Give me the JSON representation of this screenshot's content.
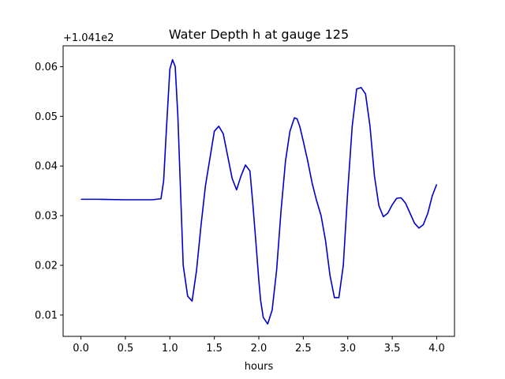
{
  "chart_data": {
    "type": "line",
    "title": "Water Depth h at gauge 125",
    "xlabel": "hours",
    "ylabel": "",
    "y_offset_label": "+1.041e2",
    "xlim": [
      -0.2,
      4.2
    ],
    "ylim": [
      0.0057,
      0.0642
    ],
    "x_ticks": [
      0.0,
      0.5,
      1.0,
      1.5,
      2.0,
      2.5,
      3.0,
      3.5,
      4.0
    ],
    "x_tick_labels": [
      "0.0",
      "0.5",
      "1.0",
      "1.5",
      "2.0",
      "2.5",
      "3.0",
      "3.5",
      "4.0"
    ],
    "y_ticks": [
      0.01,
      0.02,
      0.03,
      0.04,
      0.05,
      0.06
    ],
    "y_tick_labels": [
      "0.01",
      "0.02",
      "0.03",
      "0.04",
      "0.05",
      "0.06"
    ],
    "grid": false,
    "line_color": "#0000cc",
    "series": [
      {
        "x": [
          0.0,
          0.2,
          0.5,
          0.8,
          0.9,
          0.93,
          0.96,
          1.0,
          1.03,
          1.06,
          1.09,
          1.12,
          1.15,
          1.2,
          1.25,
          1.3,
          1.35,
          1.4,
          1.45,
          1.5,
          1.55,
          1.6,
          1.65,
          1.7,
          1.75,
          1.8,
          1.85,
          1.9,
          1.93,
          1.97,
          2.0,
          2.02,
          2.05,
          2.1,
          2.15,
          2.2,
          2.25,
          2.3,
          2.35,
          2.4,
          2.43,
          2.46,
          2.5,
          2.55,
          2.6,
          2.65,
          2.7,
          2.75,
          2.8,
          2.85,
          2.9,
          2.95,
          3.0,
          3.05,
          3.1,
          3.15,
          3.2,
          3.25,
          3.3,
          3.35,
          3.4,
          3.45,
          3.5,
          3.55,
          3.6,
          3.65,
          3.7,
          3.75,
          3.8,
          3.85,
          3.9,
          3.95,
          4.0
        ],
        "y": [
          0.0333,
          0.0333,
          0.0332,
          0.0332,
          0.0334,
          0.037,
          0.047,
          0.0595,
          0.0614,
          0.06,
          0.05,
          0.035,
          0.02,
          0.0138,
          0.0128,
          0.019,
          0.028,
          0.036,
          0.0415,
          0.047,
          0.048,
          0.0465,
          0.042,
          0.0375,
          0.0352,
          0.038,
          0.0402,
          0.039,
          0.033,
          0.024,
          0.017,
          0.013,
          0.0095,
          0.0082,
          0.011,
          0.019,
          0.031,
          0.041,
          0.047,
          0.0497,
          0.0495,
          0.048,
          0.045,
          0.041,
          0.0365,
          0.033,
          0.03,
          0.025,
          0.018,
          0.0135,
          0.0135,
          0.02,
          0.035,
          0.048,
          0.0555,
          0.0558,
          0.0545,
          0.048,
          0.038,
          0.032,
          0.0298,
          0.0305,
          0.0322,
          0.0335,
          0.0336,
          0.0325,
          0.0305,
          0.0285,
          0.0275,
          0.0282,
          0.0305,
          0.034,
          0.0363
        ]
      }
    ]
  }
}
